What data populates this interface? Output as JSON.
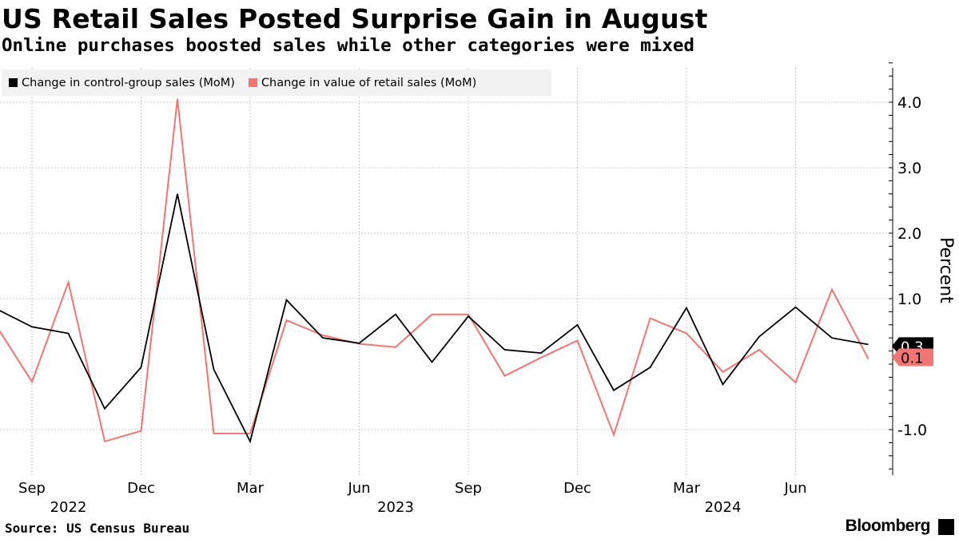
{
  "title": "US Retail Sales Posted Surprise Gain in August",
  "subtitle": "Online purchases boosted sales while other categories were mixed",
  "source": "Source: US Census Bureau",
  "brand": "Bloomberg",
  "colors": {
    "control": "#000000",
    "retail": "#f07573",
    "grid": "#c8c8c8",
    "legend_bg": "#f2f2f2"
  },
  "chart_data": {
    "type": "line",
    "title": "US Retail Sales Posted Surprise Gain in August",
    "subtitle": "Online purchases boosted sales while other categories were mixed",
    "ylabel": "Percent",
    "xlabel": "",
    "ylim": [
      -1.6,
      4.6
    ],
    "grid": true,
    "legend_position": "top-left",
    "x": [
      "2022-08",
      "2022-09",
      "2022-10",
      "2022-11",
      "2022-12",
      "2023-01",
      "2023-02",
      "2023-03",
      "2023-04",
      "2023-05",
      "2023-06",
      "2023-07",
      "2023-08",
      "2023-09",
      "2023-10",
      "2023-11",
      "2023-12",
      "2024-01",
      "2024-02",
      "2024-03",
      "2024-04",
      "2024-05",
      "2024-06",
      "2024-07",
      "2024-08"
    ],
    "series": [
      {
        "name": "Change in control-group sales (MoM)",
        "color": "#000000",
        "values": [
          0.85,
          0.57,
          0.47,
          -0.68,
          -0.05,
          2.6,
          -0.08,
          -1.18,
          0.98,
          0.4,
          0.32,
          0.76,
          0.03,
          0.73,
          0.22,
          0.17,
          0.6,
          -0.4,
          -0.05,
          0.86,
          -0.31,
          0.42,
          0.87,
          0.4,
          0.3
        ]
      },
      {
        "name": "Change in value of retail sales (MoM)",
        "color": "#f07573",
        "values": [
          0.6,
          -0.27,
          1.25,
          -1.18,
          -1.02,
          4.05,
          -1.06,
          -1.06,
          0.67,
          0.44,
          0.31,
          0.26,
          0.76,
          0.76,
          -0.18,
          0.1,
          0.36,
          -1.08,
          0.7,
          0.47,
          -0.12,
          0.22,
          -0.28,
          1.14,
          0.08
        ]
      }
    ],
    "y_ticks": [
      -1.0,
      1.0,
      2.0,
      3.0,
      4.0
    ],
    "y_tick_labels": [
      "-1.0",
      "1.0",
      "2.0",
      "3.0",
      "4.0"
    ],
    "x_month_ticks": [
      {
        "x": "2022-09",
        "label": "Sep"
      },
      {
        "x": "2022-12",
        "label": "Dec"
      },
      {
        "x": "2023-03",
        "label": "Mar"
      },
      {
        "x": "2023-06",
        "label": "Jun"
      },
      {
        "x": "2023-09",
        "label": "Sep"
      },
      {
        "x": "2023-12",
        "label": "Dec"
      },
      {
        "x": "2024-03",
        "label": "Mar"
      },
      {
        "x": "2024-06",
        "label": "Jun"
      }
    ],
    "x_year_labels": [
      {
        "x": "2022-10",
        "label": "2022"
      },
      {
        "x": "2023-07",
        "label": "2023"
      },
      {
        "x": "2024-04",
        "label": "2024"
      }
    ],
    "last_value_labels": [
      {
        "series": 0,
        "label": "0.3"
      },
      {
        "series": 1,
        "label": "0.1"
      }
    ]
  }
}
